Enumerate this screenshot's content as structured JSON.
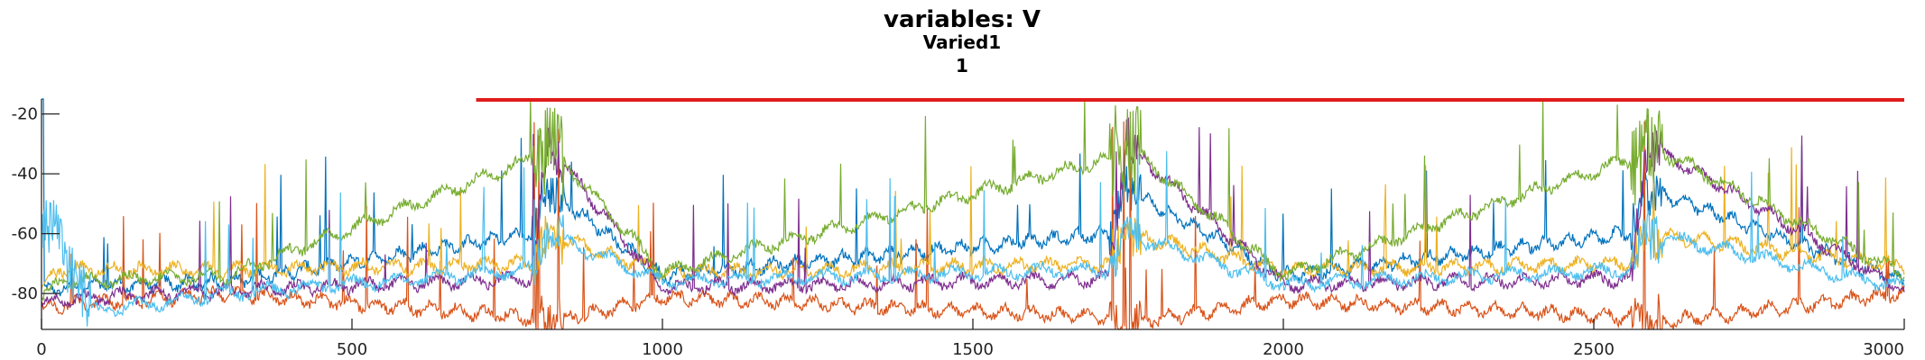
{
  "chart_data": {
    "type": "line",
    "title": "variables: V",
    "subtitle_lines": [
      "Varied1",
      "1"
    ],
    "xlabel": "",
    "ylabel": "",
    "xlim": [
      0,
      3000
    ],
    "ylim": [
      -92,
      -15
    ],
    "xticks": [
      0,
      500,
      1000,
      1500,
      2000,
      2500,
      3000
    ],
    "yticks": [
      -20,
      -40,
      -60,
      -80
    ],
    "grid": false,
    "legend": "none",
    "annotations": [
      {
        "type": "horizontal-bar",
        "color": "#e01b1b",
        "x": [
          700,
          3000
        ],
        "y": -15
      }
    ],
    "burst_windows": [
      [
        790,
        840
      ],
      [
        1720,
        1770
      ],
      [
        2560,
        2610
      ]
    ],
    "series": [
      {
        "color": "#0072bd",
        "baseline": -77,
        "x": [
          0,
          30,
          300,
          790,
          815,
          1000,
          1720,
          1745,
          2000,
          2560,
          2585,
          3000
        ],
        "y": [
          -80,
          -78,
          -76,
          -60,
          -45,
          -74,
          -60,
          -45,
          -74,
          -60,
          -45,
          -76
        ]
      },
      {
        "color": "#d95319",
        "baseline": -82,
        "x": [
          0,
          30,
          300,
          790,
          815,
          1000,
          1720,
          1745,
          2000,
          2560,
          2585,
          3000
        ],
        "y": [
          -85,
          -84,
          -80,
          -88,
          -90,
          -81,
          -88,
          -90,
          -82,
          -88,
          -90,
          -80
        ]
      },
      {
        "color": "#edb120",
        "baseline": -74,
        "x": [
          0,
          30,
          300,
          790,
          815,
          1000,
          1720,
          1745,
          2000,
          2560,
          2585,
          3000
        ],
        "y": [
          -78,
          -72,
          -72,
          -70,
          -60,
          -73,
          -70,
          -60,
          -72,
          -70,
          -60,
          -71
        ]
      },
      {
        "color": "#7e2f8e",
        "baseline": -79,
        "x": [
          0,
          30,
          300,
          790,
          815,
          1000,
          1720,
          1745,
          2000,
          2560,
          2585,
          3000
        ],
        "y": [
          -84,
          -82,
          -79,
          -75,
          -30,
          -78,
          -75,
          -30,
          -77,
          -75,
          -30,
          -79
        ]
      },
      {
        "color": "#77ac30",
        "baseline": -74,
        "x": [
          0,
          30,
          300,
          790,
          815,
          1000,
          1720,
          1745,
          2000,
          2560,
          2585,
          3000
        ],
        "y": [
          -82,
          -76,
          -74,
          -35,
          -30,
          -73,
          -35,
          -30,
          -74,
          -35,
          -30,
          -74
        ]
      },
      {
        "color": "#4dbeee",
        "baseline": -77,
        "x": [
          0,
          20,
          80,
          300,
          790,
          815,
          1000,
          1720,
          1745,
          2000,
          2560,
          2585,
          3000
        ],
        "y": [
          -60,
          -58,
          -86,
          -80,
          -72,
          -60,
          -76,
          -72,
          -60,
          -77,
          -72,
          -60,
          -78
        ]
      }
    ],
    "colors": {
      "accent_bar": "#e01b1b",
      "axis": "#262626"
    }
  }
}
